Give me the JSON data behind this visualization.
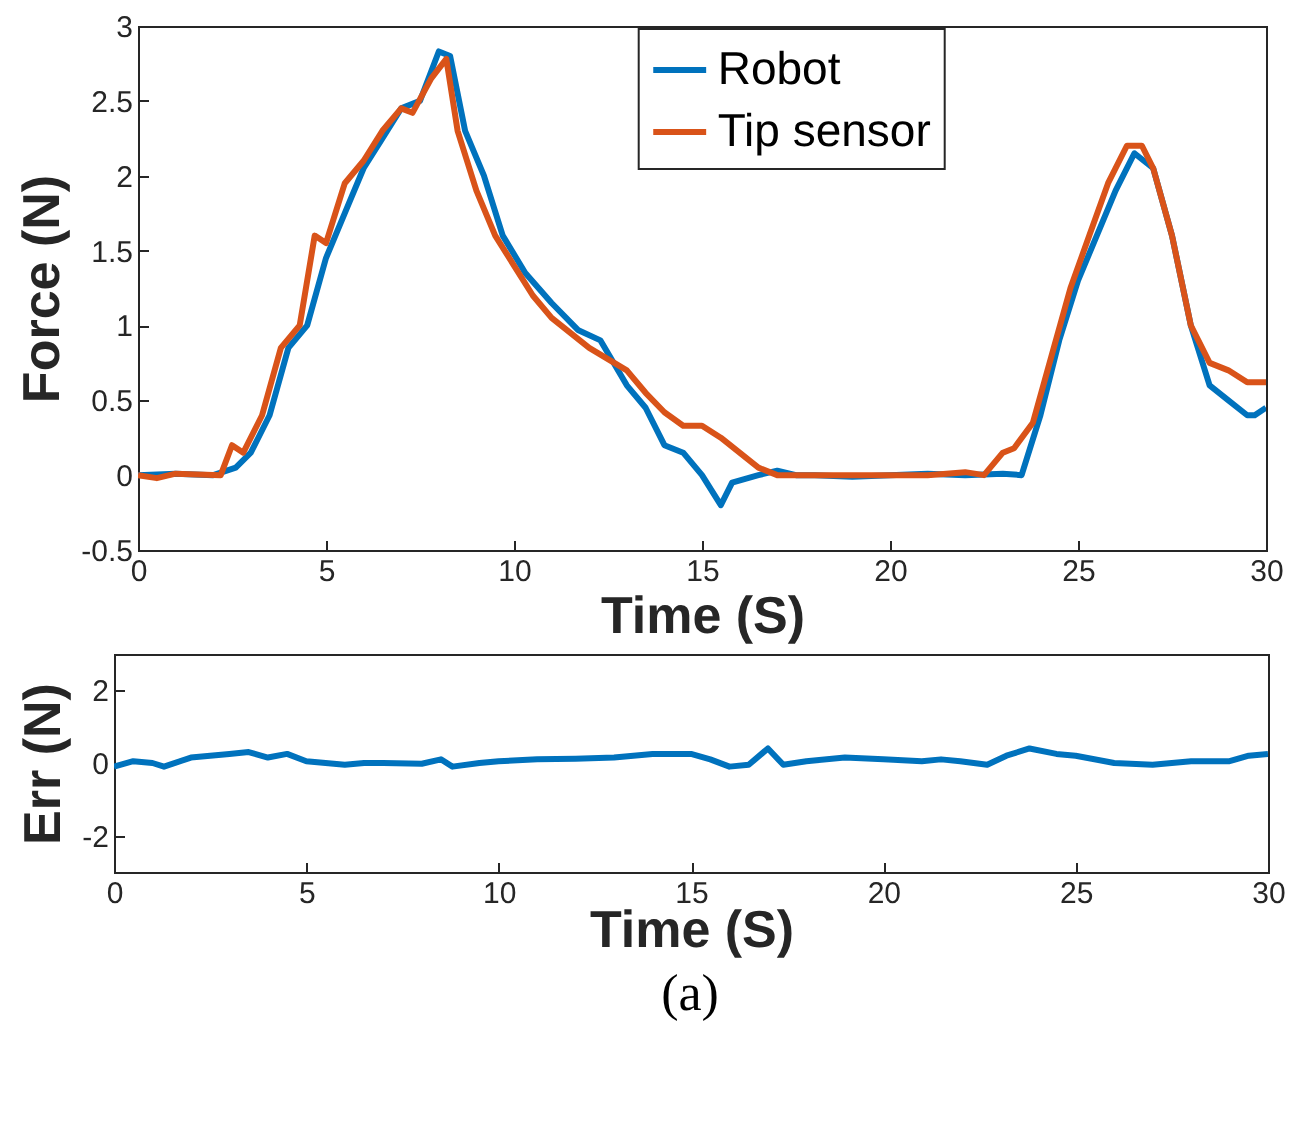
{
  "chart_data": [
    {
      "type": "line",
      "xlabel": "Time (S)",
      "ylabel": "Force (N)",
      "xlim": [
        0,
        30
      ],
      "ylim": [
        -0.5,
        3
      ],
      "xticks": [
        0,
        5,
        10,
        15,
        20,
        25,
        30
      ],
      "yticks": [
        -0.5,
        0,
        0.5,
        1,
        1.5,
        2,
        2.5,
        3
      ],
      "grid": false,
      "legend": "top right",
      "series": [
        {
          "name": "Robot",
          "color": "#0072bd",
          "x": [
            0,
            1,
            2,
            2.6,
            3,
            3.5,
            4,
            4.5,
            5,
            5.5,
            6,
            6.5,
            7,
            7.5,
            8,
            8.3,
            8.7,
            9.2,
            9.7,
            10.3,
            11,
            11.7,
            12.3,
            13,
            13.5,
            14,
            14.5,
            15,
            15.5,
            15.8,
            16.5,
            17,
            17.5,
            18,
            19,
            20,
            21,
            22,
            23,
            23.5,
            24,
            24.5,
            25,
            25.5,
            26,
            26.5,
            27,
            27.5,
            28,
            28.5,
            29,
            29.5,
            29.7,
            30
          ],
          "values": [
            0,
            0.01,
            0,
            0.05,
            0.15,
            0.4,
            0.85,
            1.0,
            1.45,
            1.75,
            2.05,
            2.25,
            2.45,
            2.5,
            2.83,
            2.8,
            2.3,
            2.0,
            1.6,
            1.35,
            1.15,
            0.97,
            0.9,
            0.6,
            0.45,
            0.2,
            0.15,
            0.0,
            -0.2,
            -0.05,
            0.0,
            0.03,
            0.0,
            0.0,
            -0.01,
            0,
            0.01,
            0.0,
            0.01,
            0.0,
            0.4,
            0.9,
            1.3,
            1.6,
            1.9,
            2.15,
            2.05,
            1.6,
            1.0,
            0.6,
            0.5,
            0.4,
            0.4,
            0.45
          ]
        },
        {
          "name": "Tip sensor",
          "color": "#d95319",
          "x": [
            0,
            0.5,
            1,
            2.2,
            2.5,
            2.8,
            3.3,
            3.8,
            4.3,
            4.7,
            5,
            5.5,
            6,
            6.5,
            7,
            7.3,
            7.8,
            8.2,
            8.5,
            9,
            9.5,
            10,
            10.5,
            11,
            11.5,
            12,
            13,
            13.5,
            14,
            14.5,
            15,
            15.5,
            16,
            16.5,
            17,
            18,
            19,
            20,
            21,
            22,
            22.5,
            23,
            23.3,
            23.8,
            24.3,
            24.8,
            25.3,
            25.8,
            26.3,
            26.7,
            27,
            27.5,
            28,
            28.5,
            29,
            29.5,
            30
          ],
          "values": [
            0,
            -0.02,
            0.01,
            0.0,
            0.2,
            0.15,
            0.4,
            0.85,
            1.0,
            1.6,
            1.55,
            1.95,
            2.1,
            2.3,
            2.45,
            2.42,
            2.65,
            2.78,
            2.3,
            1.9,
            1.6,
            1.4,
            1.2,
            1.05,
            0.95,
            0.85,
            0.7,
            0.55,
            0.42,
            0.33,
            0.33,
            0.25,
            0.15,
            0.05,
            0.0,
            0.0,
            0.0,
            0.0,
            0.0,
            0.02,
            0.0,
            0.15,
            0.18,
            0.35,
            0.8,
            1.25,
            1.6,
            1.95,
            2.2,
            2.2,
            2.05,
            1.6,
            1.0,
            0.75,
            0.7,
            0.62,
            0.62
          ]
        }
      ]
    },
    {
      "type": "line",
      "xlabel": "Time (S)",
      "ylabel": "Err (N)",
      "xlim": [
        0,
        30
      ],
      "ylim": [
        -3,
        3
      ],
      "xticks": [
        0,
        5,
        10,
        15,
        20,
        25,
        30
      ],
      "yticks": [
        -2,
        0,
        2
      ],
      "grid": false,
      "annotations": [
        "(a)"
      ],
      "series": [
        {
          "color": "#0072bd",
          "x": [
            0,
            0.5,
            1,
            1.3,
            2,
            2.5,
            3,
            3.5,
            4,
            4.5,
            5,
            6,
            6.5,
            7,
            8,
            8.5,
            8.8,
            9.5,
            10,
            11,
            12,
            13,
            14,
            15,
            15.5,
            16,
            16.5,
            17,
            17.4,
            18,
            19,
            20,
            21,
            21.5,
            22,
            22.7,
            23.2,
            23.8,
            24.5,
            25,
            26,
            27,
            28,
            29,
            29.5,
            30
          ],
          "values": [
            -0.1,
            0.05,
            0,
            -0.1,
            0.15,
            0.2,
            0.25,
            0.3,
            0.15,
            0.25,
            0.05,
            -0.05,
            0.0,
            0.0,
            -0.02,
            0.1,
            -0.1,
            0.0,
            0.05,
            0.1,
            0.12,
            0.15,
            0.25,
            0.25,
            0.1,
            -0.1,
            -0.05,
            0.4,
            -0.05,
            0.05,
            0.15,
            0.1,
            0.05,
            0.1,
            0.05,
            -0.05,
            0.2,
            0.4,
            0.25,
            0.2,
            0.0,
            -0.05,
            0.05,
            0.05,
            0.2,
            0.25
          ]
        }
      ]
    }
  ]
}
